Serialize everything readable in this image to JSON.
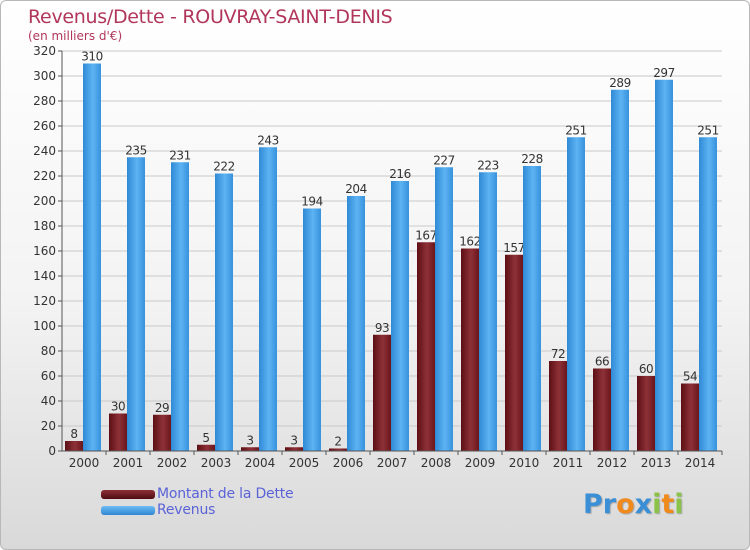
{
  "title": "Revenus/Dette - ROUVRAY-SAINT-DENIS",
  "subtitle": "(en milliers d'€)",
  "chart_data": {
    "type": "bar",
    "categories": [
      "2000",
      "2001",
      "2002",
      "2003",
      "2004",
      "2005",
      "2006",
      "2007",
      "2008",
      "2009",
      "2010",
      "2011",
      "2012",
      "2013",
      "2014"
    ],
    "series": [
      {
        "name": "Montant de la Dette",
        "color": "#7a1f24",
        "values": [
          8,
          30,
          29,
          5,
          3,
          3,
          2,
          93,
          167,
          162,
          157,
          72,
          66,
          60,
          54
        ]
      },
      {
        "name": "Revenus",
        "color": "#3d9de6",
        "values": [
          310,
          235,
          231,
          222,
          243,
          194,
          204,
          216,
          227,
          223,
          228,
          251,
          289,
          297,
          251
        ]
      }
    ],
    "ylim": [
      0,
      320
    ],
    "yticks": [
      0,
      20,
      40,
      60,
      80,
      100,
      120,
      140,
      160,
      180,
      200,
      220,
      240,
      260,
      280,
      300,
      320
    ],
    "grid": true,
    "legend_position": "bottom-left"
  },
  "legend": [
    {
      "label": "Montant de la Dette",
      "color": "#7a1f24"
    },
    {
      "label": "Revenus",
      "color": "#3d9de6"
    }
  ],
  "logo": {
    "letters": [
      "P",
      "r",
      "o",
      "x",
      "i",
      "t",
      "i"
    ],
    "colors": [
      "#3a8fd6",
      "#3a8fd6",
      "#f08a1c",
      "#3a8fd6",
      "#8bc34a",
      "#f08a1c",
      "#8bc34a"
    ]
  }
}
